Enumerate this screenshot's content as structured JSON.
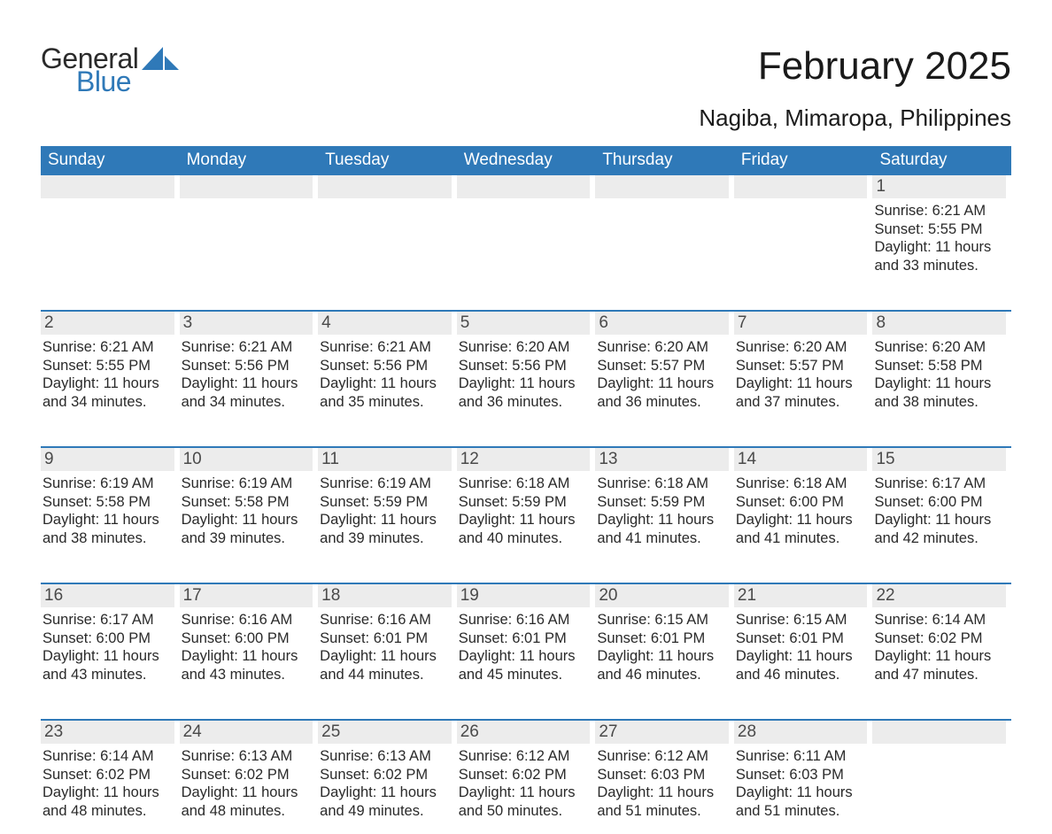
{
  "logo": {
    "general": "General",
    "blue": "Blue",
    "shape_color": "#2f79b8",
    "text_color_dark": "#2a2a2a",
    "text_color_blue": "#2f79b8"
  },
  "title": {
    "month": "February 2025",
    "location": "Nagiba, Mimaropa, Philippines",
    "month_fontsize": 44,
    "location_fontsize": 26,
    "color": "#1a1a1a"
  },
  "colors": {
    "header_bg": "#2f79b8",
    "header_text": "#ffffff",
    "daynum_bg": "#ececec",
    "daynum_color": "#4a4a4a",
    "body_text": "#2a2a2a",
    "week_divider": "#2f79b8",
    "page_bg": "#ffffff"
  },
  "weekdays": [
    "Sunday",
    "Monday",
    "Tuesday",
    "Wednesday",
    "Thursday",
    "Friday",
    "Saturday"
  ],
  "weeks": [
    [
      null,
      null,
      null,
      null,
      null,
      null,
      {
        "d": "1",
        "sr": "Sunrise: 6:21 AM",
        "ss": "Sunset: 5:55 PM",
        "dl1": "Daylight: 11 hours",
        "dl2": "and 33 minutes."
      }
    ],
    [
      {
        "d": "2",
        "sr": "Sunrise: 6:21 AM",
        "ss": "Sunset: 5:55 PM",
        "dl1": "Daylight: 11 hours",
        "dl2": "and 34 minutes."
      },
      {
        "d": "3",
        "sr": "Sunrise: 6:21 AM",
        "ss": "Sunset: 5:56 PM",
        "dl1": "Daylight: 11 hours",
        "dl2": "and 34 minutes."
      },
      {
        "d": "4",
        "sr": "Sunrise: 6:21 AM",
        "ss": "Sunset: 5:56 PM",
        "dl1": "Daylight: 11 hours",
        "dl2": "and 35 minutes."
      },
      {
        "d": "5",
        "sr": "Sunrise: 6:20 AM",
        "ss": "Sunset: 5:56 PM",
        "dl1": "Daylight: 11 hours",
        "dl2": "and 36 minutes."
      },
      {
        "d": "6",
        "sr": "Sunrise: 6:20 AM",
        "ss": "Sunset: 5:57 PM",
        "dl1": "Daylight: 11 hours",
        "dl2": "and 36 minutes."
      },
      {
        "d": "7",
        "sr": "Sunrise: 6:20 AM",
        "ss": "Sunset: 5:57 PM",
        "dl1": "Daylight: 11 hours",
        "dl2": "and 37 minutes."
      },
      {
        "d": "8",
        "sr": "Sunrise: 6:20 AM",
        "ss": "Sunset: 5:58 PM",
        "dl1": "Daylight: 11 hours",
        "dl2": "and 38 minutes."
      }
    ],
    [
      {
        "d": "9",
        "sr": "Sunrise: 6:19 AM",
        "ss": "Sunset: 5:58 PM",
        "dl1": "Daylight: 11 hours",
        "dl2": "and 38 minutes."
      },
      {
        "d": "10",
        "sr": "Sunrise: 6:19 AM",
        "ss": "Sunset: 5:58 PM",
        "dl1": "Daylight: 11 hours",
        "dl2": "and 39 minutes."
      },
      {
        "d": "11",
        "sr": "Sunrise: 6:19 AM",
        "ss": "Sunset: 5:59 PM",
        "dl1": "Daylight: 11 hours",
        "dl2": "and 39 minutes."
      },
      {
        "d": "12",
        "sr": "Sunrise: 6:18 AM",
        "ss": "Sunset: 5:59 PM",
        "dl1": "Daylight: 11 hours",
        "dl2": "and 40 minutes."
      },
      {
        "d": "13",
        "sr": "Sunrise: 6:18 AM",
        "ss": "Sunset: 5:59 PM",
        "dl1": "Daylight: 11 hours",
        "dl2": "and 41 minutes."
      },
      {
        "d": "14",
        "sr": "Sunrise: 6:18 AM",
        "ss": "Sunset: 6:00 PM",
        "dl1": "Daylight: 11 hours",
        "dl2": "and 41 minutes."
      },
      {
        "d": "15",
        "sr": "Sunrise: 6:17 AM",
        "ss": "Sunset: 6:00 PM",
        "dl1": "Daylight: 11 hours",
        "dl2": "and 42 minutes."
      }
    ],
    [
      {
        "d": "16",
        "sr": "Sunrise: 6:17 AM",
        "ss": "Sunset: 6:00 PM",
        "dl1": "Daylight: 11 hours",
        "dl2": "and 43 minutes."
      },
      {
        "d": "17",
        "sr": "Sunrise: 6:16 AM",
        "ss": "Sunset: 6:00 PM",
        "dl1": "Daylight: 11 hours",
        "dl2": "and 43 minutes."
      },
      {
        "d": "18",
        "sr": "Sunrise: 6:16 AM",
        "ss": "Sunset: 6:01 PM",
        "dl1": "Daylight: 11 hours",
        "dl2": "and 44 minutes."
      },
      {
        "d": "19",
        "sr": "Sunrise: 6:16 AM",
        "ss": "Sunset: 6:01 PM",
        "dl1": "Daylight: 11 hours",
        "dl2": "and 45 minutes."
      },
      {
        "d": "20",
        "sr": "Sunrise: 6:15 AM",
        "ss": "Sunset: 6:01 PM",
        "dl1": "Daylight: 11 hours",
        "dl2": "and 46 minutes."
      },
      {
        "d": "21",
        "sr": "Sunrise: 6:15 AM",
        "ss": "Sunset: 6:01 PM",
        "dl1": "Daylight: 11 hours",
        "dl2": "and 46 minutes."
      },
      {
        "d": "22",
        "sr": "Sunrise: 6:14 AM",
        "ss": "Sunset: 6:02 PM",
        "dl1": "Daylight: 11 hours",
        "dl2": "and 47 minutes."
      }
    ],
    [
      {
        "d": "23",
        "sr": "Sunrise: 6:14 AM",
        "ss": "Sunset: 6:02 PM",
        "dl1": "Daylight: 11 hours",
        "dl2": "and 48 minutes."
      },
      {
        "d": "24",
        "sr": "Sunrise: 6:13 AM",
        "ss": "Sunset: 6:02 PM",
        "dl1": "Daylight: 11 hours",
        "dl2": "and 48 minutes."
      },
      {
        "d": "25",
        "sr": "Sunrise: 6:13 AM",
        "ss": "Sunset: 6:02 PM",
        "dl1": "Daylight: 11 hours",
        "dl2": "and 49 minutes."
      },
      {
        "d": "26",
        "sr": "Sunrise: 6:12 AM",
        "ss": "Sunset: 6:02 PM",
        "dl1": "Daylight: 11 hours",
        "dl2": "and 50 minutes."
      },
      {
        "d": "27",
        "sr": "Sunrise: 6:12 AM",
        "ss": "Sunset: 6:03 PM",
        "dl1": "Daylight: 11 hours",
        "dl2": "and 51 minutes."
      },
      {
        "d": "28",
        "sr": "Sunrise: 6:11 AM",
        "ss": "Sunset: 6:03 PM",
        "dl1": "Daylight: 11 hours",
        "dl2": "and 51 minutes."
      },
      null
    ]
  ]
}
